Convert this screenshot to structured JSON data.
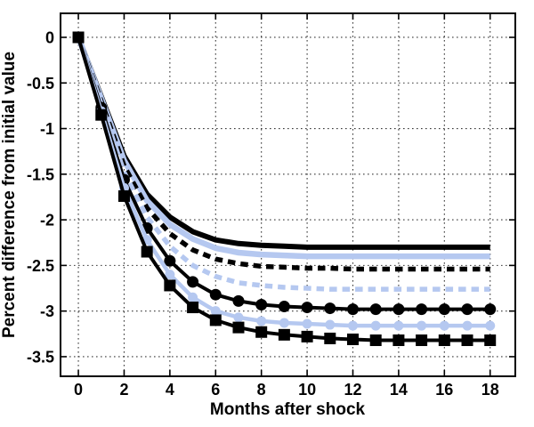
{
  "figure": {
    "background": "#ffffff",
    "title": ""
  },
  "chart_data": {
    "type": "line",
    "title": "",
    "xlabel": "Months after shock",
    "ylabel": "Percent difference from initial value",
    "xlim": [
      -0.78,
      19.1
    ],
    "ylim": [
      -3.715,
      0.263
    ],
    "xticks": [
      0,
      2,
      4,
      6,
      8,
      10,
      12,
      14,
      16,
      18
    ],
    "xtick_labels": [
      "0",
      "2",
      "4",
      "6",
      "8",
      "10",
      "12",
      "14",
      "16",
      "18"
    ],
    "yticks": [
      0,
      -0.5,
      -1,
      -1.5,
      -2,
      -2.5,
      -3,
      -3.5
    ],
    "ytick_labels": [
      "0",
      "-0.5",
      "-1",
      "-1.5",
      "-2",
      "-2.5",
      "-3",
      "-3.5"
    ],
    "grid": {
      "visible": true,
      "style": "dotted",
      "color": "#3a3a3a"
    },
    "legend": {
      "visible": false
    },
    "colors": {
      "black": "#000000",
      "light_blue": "#b5c8f0"
    },
    "x": [
      0,
      1,
      2,
      3,
      4,
      5,
      6,
      7,
      8,
      9,
      10,
      11,
      12,
      13,
      14,
      15,
      16,
      17,
      18
    ],
    "series": [
      {
        "name": "solid-black-thick",
        "color": "#000000",
        "line_style": "solid",
        "marker": "none",
        "width": 6,
        "asymptote": -2.3,
        "values": [
          0,
          -0.65,
          -1.3,
          -1.72,
          -1.97,
          -2.13,
          -2.22,
          -2.26,
          -2.28,
          -2.29,
          -2.3,
          -2.3,
          -2.3,
          -2.3,
          -2.3,
          -2.3,
          -2.3,
          -2.3,
          -2.3
        ]
      },
      {
        "name": "solid-lightblue-thick",
        "color": "#b5c8f0",
        "line_style": "solid",
        "marker": "none",
        "width": 6.5,
        "asymptote": -2.4,
        "values": [
          0,
          -0.67,
          -1.35,
          -1.79,
          -2.05,
          -2.21,
          -2.31,
          -2.36,
          -2.38,
          -2.39,
          -2.4,
          -2.4,
          -2.4,
          -2.4,
          -2.4,
          -2.4,
          -2.4,
          -2.4,
          -2.4
        ]
      },
      {
        "name": "dashed-black",
        "color": "#000000",
        "line_style": "dashed",
        "marker": "none",
        "width": 5.5,
        "asymptote": -2.54,
        "values": [
          0,
          -0.7,
          -1.41,
          -1.87,
          -2.15,
          -2.33,
          -2.43,
          -2.48,
          -2.51,
          -2.52,
          -2.53,
          -2.53,
          -2.54,
          -2.54,
          -2.54,
          -2.54,
          -2.54,
          -2.54,
          -2.54
        ]
      },
      {
        "name": "dashed-lightblue",
        "color": "#b5c8f0",
        "line_style": "dashed",
        "marker": "none",
        "width": 5.5,
        "asymptote": -2.76,
        "values": [
          0,
          -0.73,
          -1.48,
          -1.97,
          -2.29,
          -2.5,
          -2.62,
          -2.69,
          -2.72,
          -2.74,
          -2.75,
          -2.76,
          -2.76,
          -2.76,
          -2.76,
          -2.76,
          -2.76,
          -2.76,
          -2.76
        ]
      },
      {
        "name": "black-circle-markers",
        "color": "#000000",
        "line_style": "solid",
        "marker": "circle",
        "width": 4,
        "marker_size": 6.5,
        "asymptote": -2.98,
        "values": [
          0,
          -0.77,
          -1.56,
          -2.09,
          -2.45,
          -2.68,
          -2.82,
          -2.89,
          -2.93,
          -2.95,
          -2.96,
          -2.97,
          -2.98,
          -2.98,
          -2.98,
          -2.98,
          -2.98,
          -2.98,
          -2.98
        ]
      },
      {
        "name": "lightblue-circle-markers",
        "color": "#b5c8f0",
        "line_style": "solid",
        "marker": "circle",
        "width": 4.5,
        "marker_size": 5.5,
        "asymptote": -3.16,
        "values": [
          0,
          -0.81,
          -1.65,
          -2.22,
          -2.6,
          -2.85,
          -3.0,
          -3.07,
          -3.11,
          -3.13,
          -3.14,
          -3.15,
          -3.16,
          -3.16,
          -3.16,
          -3.16,
          -3.16,
          -3.16,
          -3.16
        ]
      },
      {
        "name": "black-square-markers",
        "color": "#000000",
        "line_style": "solid",
        "marker": "square",
        "width": 4,
        "marker_size": 6.5,
        "asymptote": -3.32,
        "values": [
          0,
          -0.85,
          -1.74,
          -2.35,
          -2.72,
          -2.96,
          -3.1,
          -3.18,
          -3.23,
          -3.26,
          -3.28,
          -3.3,
          -3.31,
          -3.32,
          -3.32,
          -3.32,
          -3.32,
          -3.32,
          -3.32
        ]
      }
    ]
  }
}
